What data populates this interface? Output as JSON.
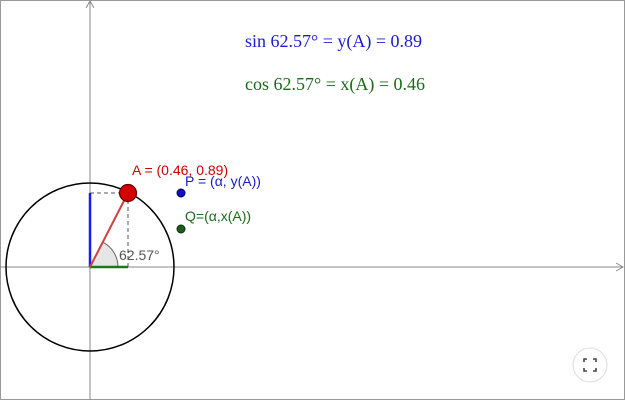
{
  "formulas": {
    "sin": "sin 62.57° = y(A) = 0.89",
    "cos": "cos 62.57° = x(A) = 0.46"
  },
  "labels": {
    "A": "A = (0.46, 0.89)",
    "P": "P = (α, y(A))",
    "Q": "Q=(α,x(A))",
    "angle": "62.57°"
  }
}
